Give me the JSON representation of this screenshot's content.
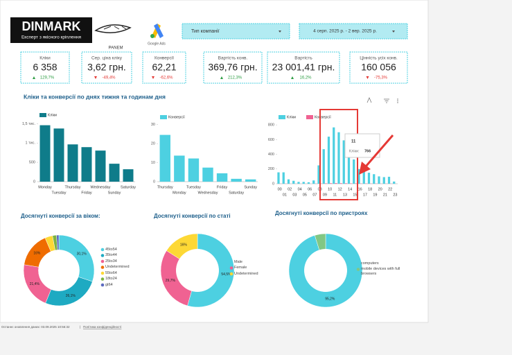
{
  "header": {
    "logo": "DINMARK",
    "logo_subtitle": "Експерт з якісного кріплення",
    "partner": "PANEM",
    "ads": "Google Ads"
  },
  "filters": {
    "campaign_type": "Тип компанії",
    "date_range": "4 серп. 2025 р. - 2 вер. 2025 р."
  },
  "kpis": [
    {
      "label": "Кліки",
      "value": "6 358",
      "change": "129,7%",
      "color": "#2e9e44"
    },
    {
      "label": "Сер. ціна кліку",
      "value": "3,62 грн.",
      "change": "-49,4%",
      "color": "#e53935"
    },
    {
      "label": "Конверсії",
      "value": "62,21",
      "change": "-62,6%",
      "color": "#e53935"
    },
    {
      "label": "Вартість конв.",
      "value": "369,76 грн.",
      "change": "212,3%",
      "color": "#2e9e44"
    },
    {
      "label": "Вартість",
      "value": "23 001,41 грн.",
      "change": "16,2%",
      "color": "#2e9e44"
    },
    {
      "label": "Цінність усіх конв.",
      "value": "160 056",
      "change": "-75,3%",
      "color": "#e53935"
    }
  ],
  "section_title": "Кліки та конверсії по днях тижня та годинам дня",
  "chart_data": [
    {
      "type": "bar",
      "categories": [
        "Monday",
        "Tuesday",
        "Thursday",
        "Friday",
        "Wednesday",
        "Sunday",
        "Saturday"
      ],
      "series": [
        {
          "name": "Кліки",
          "color": "#0f7c8a",
          "values": [
            1460,
            1375,
            964,
            893,
            804,
            464,
            321
          ]
        }
      ],
      "ylim": [
        0,
        1650
      ],
      "yticks": [
        0,
        500,
        {
          "value": 1000,
          "label": "1 тис."
        },
        {
          "value": 1500,
          "label": "1,5 тис."
        }
      ]
    },
    {
      "type": "bar",
      "categories": [
        "Thursday",
        "Monday",
        "Tuesday",
        "Wednesday",
        "Friday",
        "Saturday",
        "Sunday"
      ],
      "series": [
        {
          "name": "Конверсії",
          "color": "#4dd0e1",
          "values": [
            24.6,
            13.7,
            12.2,
            7.4,
            4.4,
            1.5,
            1.2
          ]
        }
      ],
      "ylim": [
        0,
        31
      ],
      "yticks": [
        0,
        10,
        20,
        30
      ]
    },
    {
      "type": "bar",
      "categories": [
        "00",
        "01",
        "02",
        "03",
        "04",
        "05",
        "06",
        "07",
        "08",
        "09",
        "10",
        "11",
        "12",
        "13",
        "14",
        "15",
        "16",
        "17",
        "18",
        "19",
        "20",
        "21",
        "22",
        "23"
      ],
      "series": [
        {
          "name": "Кліки",
          "color": "#4dd0e1",
          "values": [
            155,
            155,
            60,
            40,
            25,
            25,
            20,
            45,
            250,
            470,
            640,
            766,
            700,
            590,
            480,
            330,
            200,
            180,
            150,
            130,
            100,
            90,
            95,
            30
          ]
        },
        {
          "name": "Конверсії",
          "color": "#f06292",
          "values": [
            1,
            1,
            0,
            0,
            0,
            0,
            0,
            1,
            3,
            5,
            7,
            8,
            7,
            6,
            5,
            4,
            3,
            3,
            2,
            2,
            1,
            1,
            1,
            0
          ]
        }
      ],
      "ylim": [
        0,
        820
      ],
      "yticks": [
        0,
        200,
        400,
        600,
        800
      ],
      "tooltip": {
        "label": "Кліки:"
      }
    },
    {
      "type": "pie",
      "donut": true,
      "title": "Досягнуті конверсії за віком:",
      "categories": [
        "45to54",
        "35to44",
        "25to34",
        "Undetermined",
        "55to64",
        "18to24",
        "gt64"
      ],
      "values": [
        30.1,
        26.1,
        21.4,
        16,
        3.5,
        1.8,
        1.1
      ],
      "value_labels": [
        "30,1%",
        "26,1%",
        "21,4%",
        "16%",
        null,
        null,
        null
      ],
      "colors": [
        "#4dd0e1",
        "#1eaac2",
        "#f06292",
        "#ef6c00",
        "#fdd835",
        "#7cb342",
        "#5c6bc0"
      ]
    },
    {
      "type": "pie",
      "donut": true,
      "title": "Досягнуті конверсії по статі",
      "categories": [
        "Male",
        "Female",
        "Undetermined"
      ],
      "values": [
        54.5,
        29.7,
        16
      ],
      "value_labels": [
        "54,5%",
        "29,7%",
        "16%"
      ],
      "colors": [
        "#4dd0e1",
        "#f06292",
        "#fdd835"
      ]
    },
    {
      "type": "pie",
      "donut": true,
      "title": "Досягнуті конверсії по пристроях",
      "categories": [
        "computers",
        "mobile devices with full browsers"
      ],
      "values": [
        95.2,
        4.8
      ],
      "value_labels": [
        "95,2%",
        null
      ],
      "colors": [
        "#4dd0e1",
        "#81c784"
      ]
    }
  ],
  "footer": {
    "updated": "Останнє оновлення даних: 03.09.2025 10:56:32",
    "separator": "|",
    "privacy": "Політика конфіденційності"
  }
}
